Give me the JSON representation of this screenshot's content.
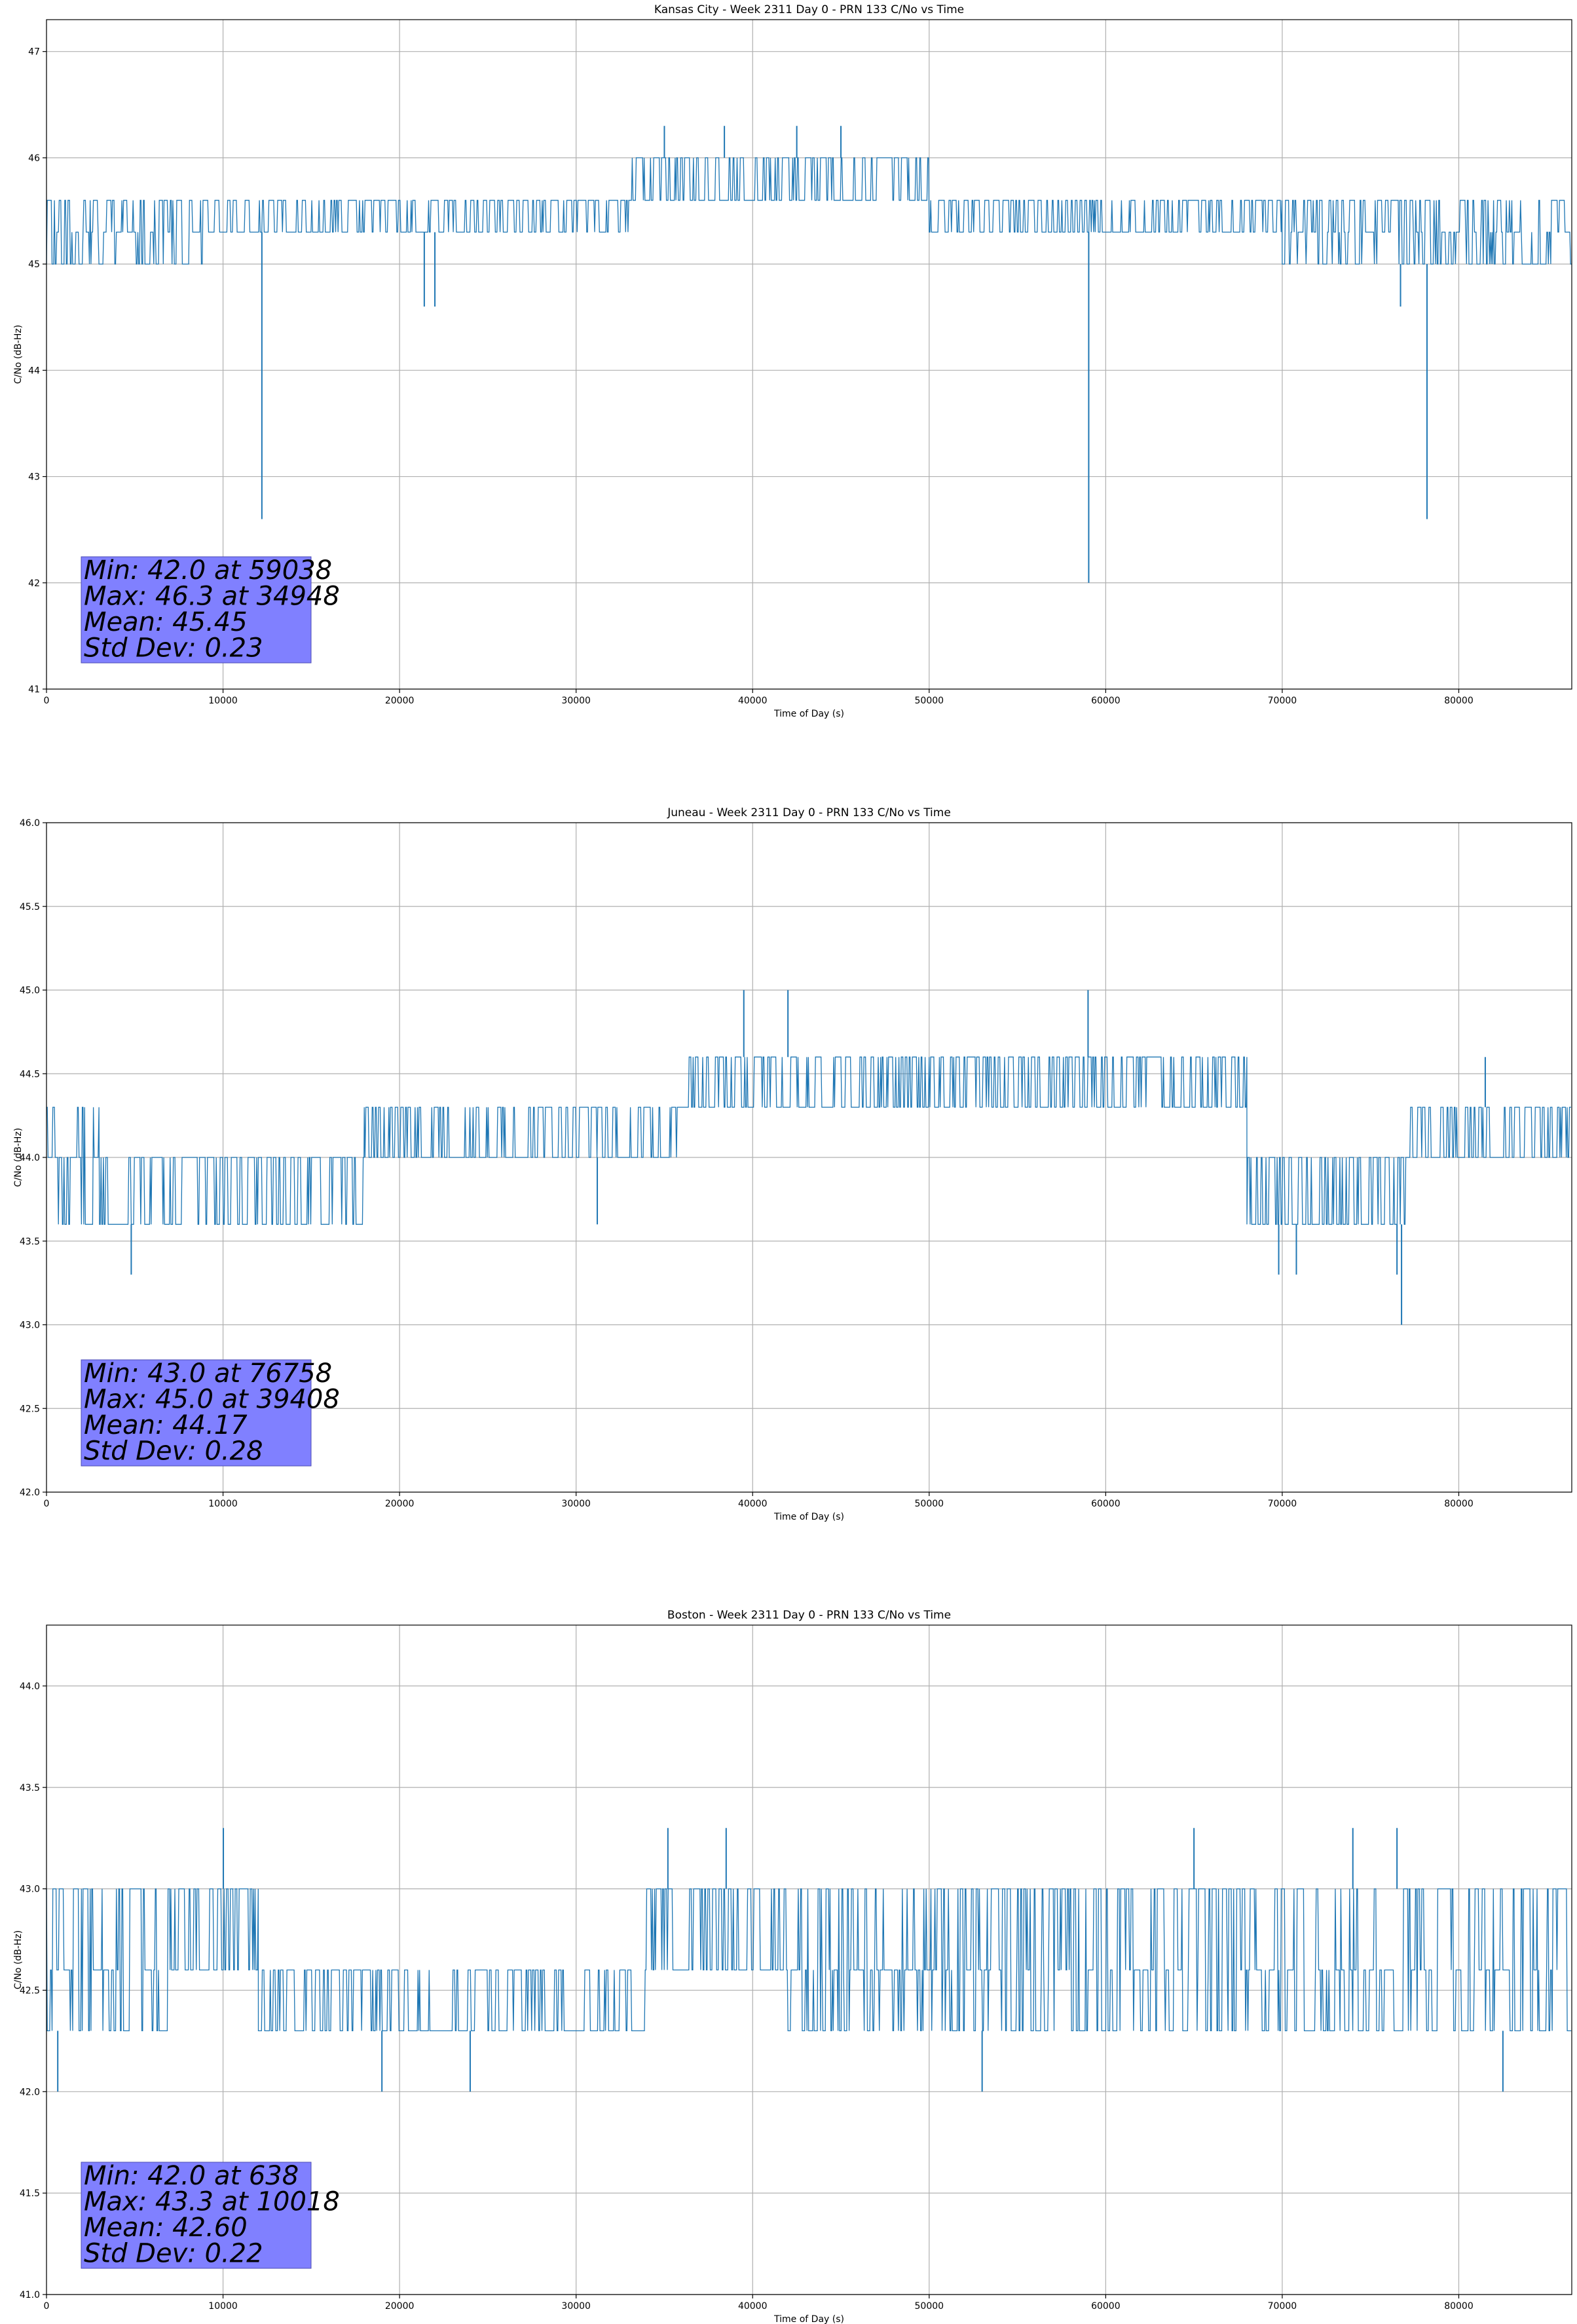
{
  "colors": {
    "line": "#1f77b4",
    "grid": "#b0b0b0",
    "stats_box_fill": "#8080ff",
    "stats_box_edge": "#4d4db3"
  },
  "chart_data": [
    {
      "type": "line",
      "title": "Kansas City - Week 2311 Day 0 - PRN 133 C/No vs Time",
      "xlabel": "Time of Day (s)",
      "ylabel": "C/No (dB-Hz)",
      "xlim": [
        0,
        86400
      ],
      "ylim": [
        41,
        47.3
      ],
      "xticks": [
        0,
        10000,
        20000,
        30000,
        40000,
        50000,
        60000,
        70000,
        80000
      ],
      "xtick_labels": [
        "0",
        "10000",
        "20000",
        "30000",
        "40000",
        "50000",
        "60000",
        "70000",
        "80000"
      ],
      "yticks": [
        41,
        42,
        43,
        44,
        45,
        46,
        47
      ],
      "ytick_labels": [
        "41",
        "42",
        "43",
        "44",
        "45",
        "46",
        "47"
      ],
      "grid": true,
      "series": [
        {
          "x": [
            0,
            9000,
            9000,
            33000,
            33000,
            50000,
            50000,
            70000,
            70000,
            86400
          ],
          "levels": [
            [
              45.0,
              45.3,
              45.6
            ],
            [
              45.3,
              45.6
            ],
            [
              45.6,
              46.0
            ],
            [
              45.3,
              45.6
            ],
            [
              45.0,
              45.3,
              45.6
            ]
          ],
          "outliers": [
            [
              12200,
              42.6
            ],
            [
              21400,
              44.6
            ],
            [
              22000,
              44.6
            ],
            [
              35000,
              46.3
            ],
            [
              38400,
              46.3
            ],
            [
              42500,
              46.3
            ],
            [
              45000,
              46.3
            ],
            [
              59038,
              42.0
            ],
            [
              76700,
              44.6
            ],
            [
              78200,
              42.6
            ]
          ]
        }
      ],
      "stats_box": {
        "lines": [
          "Min: 42.0 at 59038",
          "Max: 46.3 at 34948",
          "Mean: 45.45",
          "Std Dev: 0.23"
        ]
      }
    },
    {
      "type": "line",
      "title": "Juneau - Week 2311 Day 0 - PRN 133 C/No vs Time",
      "xlabel": "Time of Day (s)",
      "ylabel": "C/No (dB-Hz)",
      "xlim": [
        0,
        86400
      ],
      "ylim": [
        42,
        46
      ],
      "xticks": [
        0,
        10000,
        20000,
        30000,
        40000,
        50000,
        60000,
        70000,
        80000
      ],
      "xtick_labels": [
        "0",
        "10000",
        "20000",
        "30000",
        "40000",
        "50000",
        "60000",
        "70000",
        "80000"
      ],
      "yticks": [
        42.0,
        42.5,
        43.0,
        43.5,
        44.0,
        44.5,
        45.0,
        45.5,
        46.0
      ],
      "ytick_labels": [
        "42.0",
        "42.5",
        "43.0",
        "43.5",
        "44.0",
        "44.5",
        "45.0",
        "45.5",
        "46.0"
      ],
      "grid": true,
      "series": [
        {
          "x": [
            0,
            3000,
            3000,
            18000,
            18000,
            36000,
            36000,
            68000,
            68000,
            77000,
            77000,
            86400
          ],
          "levels": [
            [
              43.6,
              44.0,
              44.3
            ],
            [
              43.6,
              44.0
            ],
            [
              44.0,
              44.3
            ],
            [
              44.3,
              44.6
            ],
            [
              43.6,
              44.0
            ],
            [
              44.0,
              44.3
            ]
          ],
          "outliers": [
            [
              4800,
              43.3
            ],
            [
              31200,
              43.6
            ],
            [
              39500,
              45.0
            ],
            [
              42000,
              45.0
            ],
            [
              59000,
              45.0
            ],
            [
              69800,
              43.3
            ],
            [
              70800,
              43.3
            ],
            [
              76500,
              43.3
            ],
            [
              76758,
              43.0
            ],
            [
              81500,
              44.6
            ]
          ]
        }
      ],
      "stats_box": {
        "lines": [
          "Min: 43.0 at 76758",
          "Max: 45.0 at 39408",
          "Mean: 44.17",
          "Std Dev: 0.28"
        ]
      }
    },
    {
      "type": "line",
      "title": "Boston - Week 2311 Day 0 - PRN 133 C/No vs Time",
      "xlabel": "Time of Day (s)",
      "ylabel": "C/No (dB-Hz)",
      "xlim": [
        0,
        86400
      ],
      "ylim": [
        41,
        44.3
      ],
      "xticks": [
        0,
        10000,
        20000,
        30000,
        40000,
        50000,
        60000,
        70000,
        80000
      ],
      "xtick_labels": [
        "0",
        "10000",
        "20000",
        "30000",
        "40000",
        "50000",
        "60000",
        "70000",
        "80000"
      ],
      "yticks": [
        41.0,
        41.5,
        42.0,
        42.5,
        43.0,
        43.5,
        44.0
      ],
      "ytick_labels": [
        "41.0",
        "41.5",
        "42.0",
        "42.5",
        "43.0",
        "43.5",
        "44.0"
      ],
      "grid": true,
      "series": [
        {
          "x": [
            0,
            7000,
            7000,
            12000,
            12000,
            34000,
            34000,
            42000,
            42000,
            60000,
            60000,
            86400
          ],
          "levels": [
            [
              42.3,
              42.6,
              43.0
            ],
            [
              42.6,
              43.0
            ],
            [
              42.3,
              42.6
            ],
            [
              42.6,
              43.0
            ],
            [
              42.3,
              42.6,
              43.0
            ],
            [
              42.6,
              43.0,
              42.3
            ]
          ],
          "outliers": [
            [
              638,
              42.0
            ],
            [
              10018,
              43.3
            ],
            [
              19000,
              42.0
            ],
            [
              24000,
              42.0
            ],
            [
              35200,
              43.3
            ],
            [
              38500,
              43.3
            ],
            [
              53000,
              42.0
            ],
            [
              65000,
              43.3
            ],
            [
              74000,
              43.3
            ],
            [
              76500,
              43.3
            ],
            [
              82500,
              42.0
            ]
          ]
        }
      ],
      "stats_box": {
        "lines": [
          "Min: 42.0 at 638",
          "Max: 43.3 at 10018",
          "Mean: 42.60",
          "Std Dev: 0.22"
        ]
      }
    }
  ]
}
